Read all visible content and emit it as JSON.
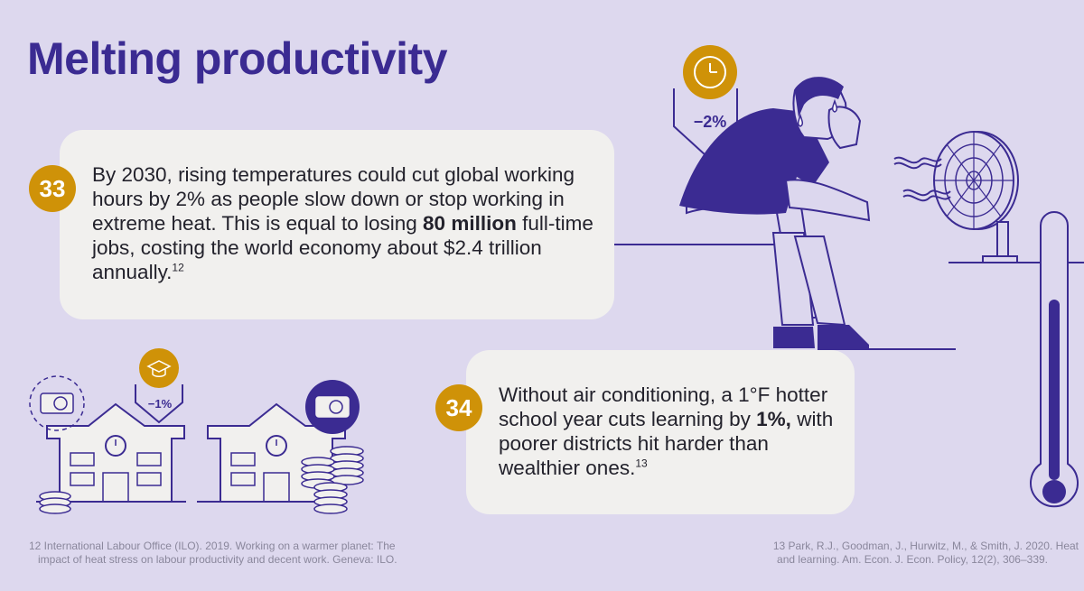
{
  "title": "Melting productivity",
  "stats": [
    {
      "number": "33",
      "text_a": "By 2030, rising temperatures could cut global working hours by 2% as people slow down or stop working in extreme heat. This is equal to losing ",
      "text_bold": "80 million",
      "text_b": " full-time jobs, costing the world economy about $2.4 trillion annually.",
      "ref": "12"
    },
    {
      "number": "34",
      "text_a": "Without air conditioning, a 1°F hotter school year cuts learning by ",
      "text_bold": "1%,",
      "text_b": " with poorer districts hit harder than wealthier ones.",
      "ref": "13"
    }
  ],
  "illustration": {
    "worker_drop": "−2%",
    "school_drop": "−1%",
    "icons": [
      "clock-icon",
      "graduation-cap-icon",
      "air-conditioner-icon",
      "fan-icon",
      "thermometer-icon",
      "coin-stack-icon"
    ],
    "colors": {
      "purple": "#3b2b92",
      "gold": "#cf9208",
      "background": "#ddd8ee",
      "card": "#f1f0ee"
    }
  },
  "footnotes": [
    {
      "line1": "12 International Labour Office (ILO). 2019. Working on a warmer planet: The",
      "line2": "impact of heat stress on labour productivity and decent work. Geneva: ILO."
    },
    {
      "line1": "13 Park, R.J., Goodman, J., Hurwitz, M., & Smith, J. 2020. Heat",
      "line2": "and learning. Am. Econ. J. Econ. Policy, 12(2), 306–339."
    }
  ]
}
